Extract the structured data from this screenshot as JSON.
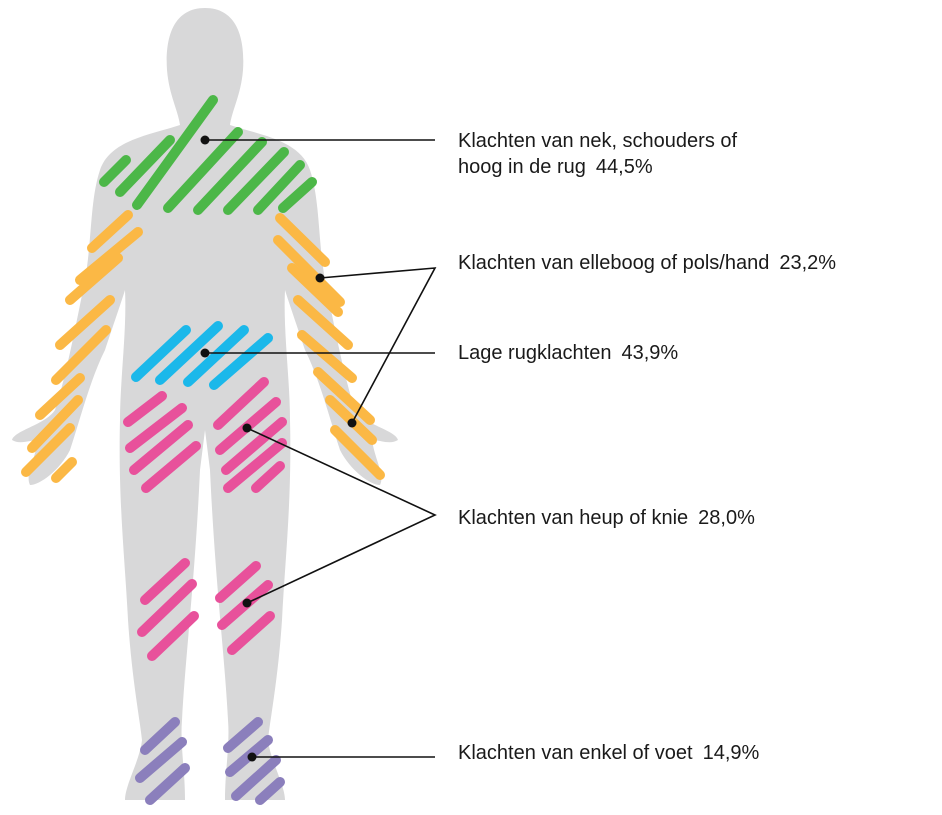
{
  "callouts": [
    {
      "lines": [
        "Klachten van nek, schouders of",
        "hoog in de rug"
      ],
      "value": "44,5%"
    },
    {
      "lines": [
        "Klachten van elleboog of pols/hand"
      ],
      "value": "23,2%"
    },
    {
      "lines": [
        "Lage rugklachten"
      ],
      "value": "43,9%"
    },
    {
      "lines": [
        "Klachten van heup of knie"
      ],
      "value": "28,0%"
    },
    {
      "lines": [
        "Klachten van enkel of voet"
      ],
      "value": "14,9%"
    }
  ]
}
